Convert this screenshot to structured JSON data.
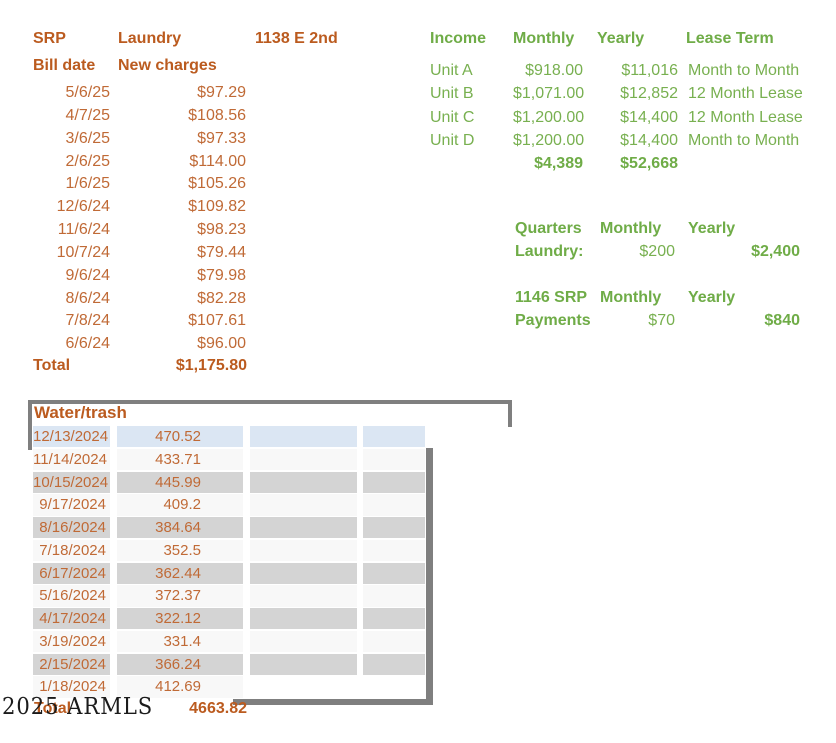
{
  "colors": {
    "orange_bold": "#BB5B1F",
    "orange": "#C06A36",
    "green_bold": "#6FAC47",
    "green": "#78B050",
    "frame_gray": "#7F7F7F",
    "row_blue": "#DBE6F3",
    "row_white": "#F8F8F8",
    "row_gray": "#D4D4D4"
  },
  "srp": {
    "title": "SRP",
    "subtitle": "Laundry",
    "address": "1138 E 2nd",
    "col_date": "Bill date",
    "col_charges": "New charges",
    "rows": [
      {
        "date": "5/6/25",
        "amount": "$97.29"
      },
      {
        "date": "4/7/25",
        "amount": "$108.56"
      },
      {
        "date": "3/6/25",
        "amount": "$97.33"
      },
      {
        "date": "2/6/25",
        "amount": "$114.00"
      },
      {
        "date": "1/6/25",
        "amount": "$105.26"
      },
      {
        "date": "12/6/24",
        "amount": "$109.82"
      },
      {
        "date": "11/6/24",
        "amount": "$98.23"
      },
      {
        "date": "10/7/24",
        "amount": "$79.44"
      },
      {
        "date": "9/6/24",
        "amount": "$79.98"
      },
      {
        "date": "8/6/24",
        "amount": "$82.28"
      },
      {
        "date": "7/8/24",
        "amount": "$107.61"
      },
      {
        "date": "6/6/24",
        "amount": "$96.00"
      }
    ],
    "total_label": "Total",
    "total": "$1,175.80"
  },
  "income": {
    "header_income": "Income",
    "header_monthly": "Monthly",
    "header_yearly": "Yearly",
    "header_lease": "Lease Term",
    "rows": [
      {
        "unit": "Unit A",
        "monthly": "$918.00",
        "yearly": "$11,016",
        "lease": "Month to Month"
      },
      {
        "unit": "Unit B",
        "monthly": "$1,071.00",
        "yearly": "$12,852",
        "lease": "12 Month Lease"
      },
      {
        "unit": "Unit C",
        "monthly": "$1,200.00",
        "yearly": "$14,400",
        "lease": "12 Month Lease"
      },
      {
        "unit": "Unit D",
        "monthly": "$1,200.00",
        "yearly": "$14,400",
        "lease": "Month to Month"
      }
    ],
    "total_monthly": "$4,389",
    "total_yearly": "$52,668"
  },
  "quarters": {
    "title": "Quarters",
    "header_monthly": "Monthly",
    "header_yearly": "Yearly",
    "row_label": "Laundry:",
    "monthly": "$200",
    "yearly": "$2,400"
  },
  "srp1146": {
    "title": "1146 SRP",
    "header_monthly": "Monthly",
    "header_yearly": "Yearly",
    "row_label": "Payments",
    "monthly": "$70",
    "yearly": "$840"
  },
  "water": {
    "title": "Water/trash",
    "rows": [
      {
        "date": "12/13/2024",
        "amount": "470.52"
      },
      {
        "date": "11/14/2024",
        "amount": "433.71"
      },
      {
        "date": "10/15/2024",
        "amount": "445.99"
      },
      {
        "date": "9/17/2024",
        "amount": "409.2"
      },
      {
        "date": "8/16/2024",
        "amount": "384.64"
      },
      {
        "date": "7/18/2024",
        "amount": "352.5"
      },
      {
        "date": "6/17/2024",
        "amount": "362.44"
      },
      {
        "date": "5/16/2024",
        "amount": "372.37"
      },
      {
        "date": "4/17/2024",
        "amount": "322.12"
      },
      {
        "date": "3/19/2024",
        "amount": "331.4"
      },
      {
        "date": "2/15/2024",
        "amount": "366.24"
      },
      {
        "date": "1/18/2024",
        "amount": "412.69"
      }
    ],
    "total_label": "Total",
    "total": "4663.82"
  },
  "watermark": "2025 ARMLS"
}
